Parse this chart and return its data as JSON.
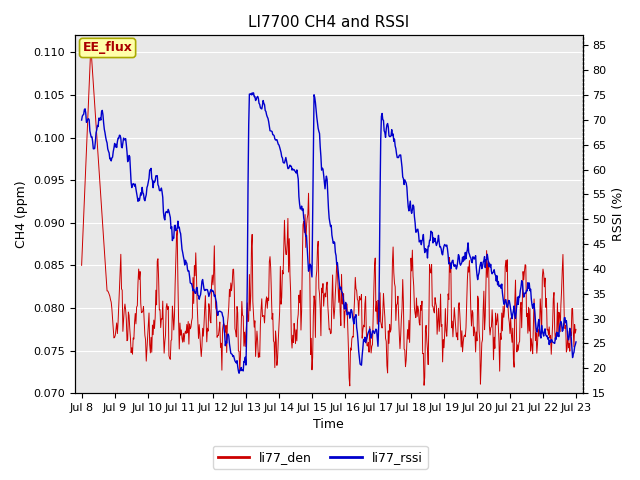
{
  "title": "LI7700 CH4 and RSSI",
  "xlabel": "Time",
  "ylabel_left": "CH4 (ppm)",
  "ylabel_right": "RSSI (%)",
  "annotation": "EE_flux",
  "ylim_left": [
    0.07,
    0.112
  ],
  "ylim_right": [
    15,
    87
  ],
  "yticks_left": [
    0.07,
    0.075,
    0.08,
    0.085,
    0.09,
    0.095,
    0.1,
    0.105,
    0.11
  ],
  "yticks_right": [
    15,
    20,
    25,
    30,
    35,
    40,
    45,
    50,
    55,
    60,
    65,
    70,
    75,
    80,
    85
  ],
  "xtick_labels": [
    "Jul 8",
    "Jul 9",
    "Jul 10",
    "Jul 11",
    "Jul 12",
    "Jul 13",
    "Jul 14",
    "Jul 15",
    "Jul 16",
    "Jul 17",
    "Jul 18",
    "Jul 19",
    "Jul 20",
    "Jul 21",
    "Jul 22",
    "Jul 23"
  ],
  "line_color_den": "#cc0000",
  "line_color_rssi": "#0000cc",
  "legend_den": "li77_den",
  "legend_rssi": "li77_rssi",
  "plot_bg_color": "#e8e8e8",
  "fig_bg_color": "#ffffff",
  "grid_color": "#ffffff",
  "annotation_bg": "#ffffaa",
  "annotation_border": "#aaaa00",
  "title_fontsize": 11,
  "axis_label_fontsize": 9,
  "tick_fontsize": 8,
  "legend_fontsize": 9
}
